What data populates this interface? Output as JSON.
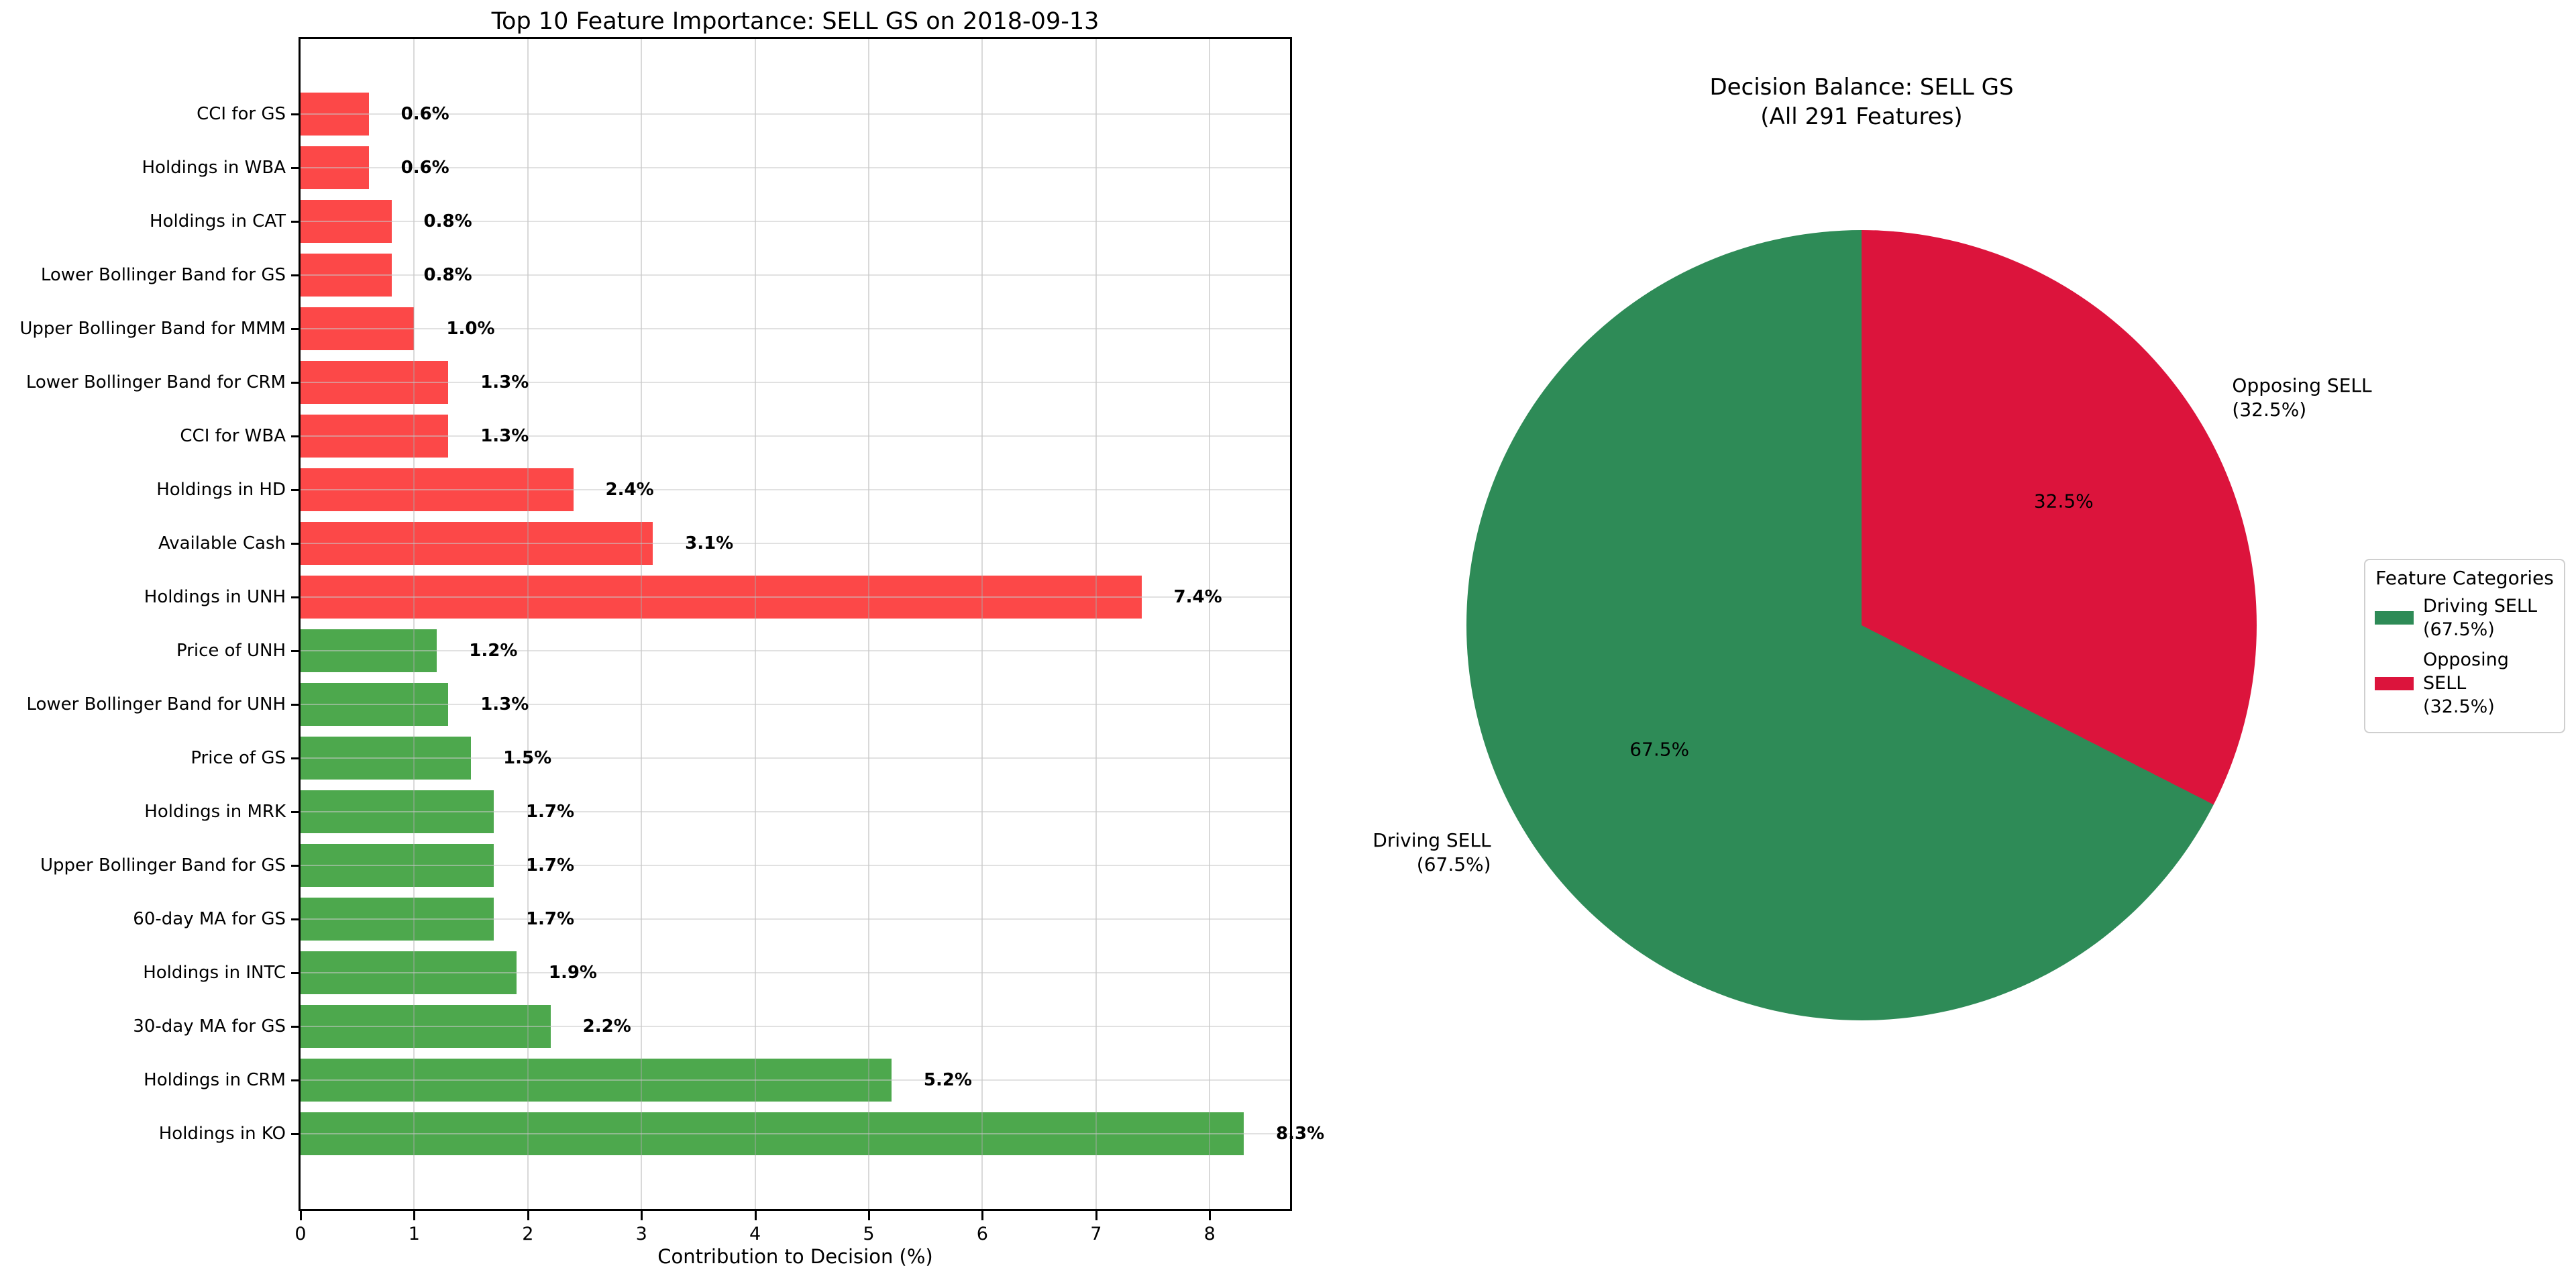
{
  "chart_data": [
    {
      "type": "bar",
      "orientation": "horizontal",
      "title": "Top 10 Feature Importance: SELL GS on 2018-09-13",
      "xlabel": "Contribution to Decision (%)",
      "x_ticks": [
        0,
        1,
        2,
        3,
        4,
        5,
        6,
        7,
        8
      ],
      "xlim": [
        0,
        8.72
      ],
      "grid": true,
      "category_colors": {
        "opposing": "#fc4848",
        "driving": "#4da84d"
      },
      "bars": [
        {
          "label": "CCI for GS",
          "value": 0.6,
          "display": "0.6%",
          "category": "opposing"
        },
        {
          "label": "Holdings in WBA",
          "value": 0.6,
          "display": "0.6%",
          "category": "opposing"
        },
        {
          "label": "Holdings in CAT",
          "value": 0.8,
          "display": "0.8%",
          "category": "opposing"
        },
        {
          "label": "Lower Bollinger Band for GS",
          "value": 0.8,
          "display": "0.8%",
          "category": "opposing"
        },
        {
          "label": "Upper Bollinger Band for MMM",
          "value": 1.0,
          "display": "1.0%",
          "category": "opposing"
        },
        {
          "label": "Lower Bollinger Band for CRM",
          "value": 1.3,
          "display": "1.3%",
          "category": "opposing"
        },
        {
          "label": "CCI for WBA",
          "value": 1.3,
          "display": "1.3%",
          "category": "opposing"
        },
        {
          "label": "Holdings in HD",
          "value": 2.4,
          "display": "2.4%",
          "category": "opposing"
        },
        {
          "label": "Available Cash",
          "value": 3.1,
          "display": "3.1%",
          "category": "opposing"
        },
        {
          "label": "Holdings in UNH",
          "value": 7.4,
          "display": "7.4%",
          "category": "opposing"
        },
        {
          "label": "Price of UNH",
          "value": 1.2,
          "display": "1.2%",
          "category": "driving"
        },
        {
          "label": "Lower Bollinger Band for UNH",
          "value": 1.3,
          "display": "1.3%",
          "category": "driving"
        },
        {
          "label": "Price of GS",
          "value": 1.5,
          "display": "1.5%",
          "category": "driving"
        },
        {
          "label": "Holdings in MRK",
          "value": 1.7,
          "display": "1.7%",
          "category": "driving"
        },
        {
          "label": "Upper Bollinger Band for GS",
          "value": 1.7,
          "display": "1.7%",
          "category": "driving"
        },
        {
          "label": "60-day MA for GS",
          "value": 1.7,
          "display": "1.7%",
          "category": "driving"
        },
        {
          "label": "Holdings in INTC",
          "value": 1.9,
          "display": "1.9%",
          "category": "driving"
        },
        {
          "label": "30-day MA for GS",
          "value": 2.2,
          "display": "2.2%",
          "category": "driving"
        },
        {
          "label": "Holdings in CRM",
          "value": 5.2,
          "display": "5.2%",
          "category": "driving"
        },
        {
          "label": "Holdings in KO",
          "value": 8.3,
          "display": "8.3%",
          "category": "driving"
        }
      ]
    },
    {
      "type": "pie",
      "title": "Decision Balance: SELL GS\n(All 291 Features)",
      "start_angle_deg": 90,
      "counterclockwise": true,
      "slices": [
        {
          "name": "Driving SELL",
          "pct": 67.5,
          "color": "#2e8b57",
          "inner_label": "67.5%",
          "outer_label": "Driving SELL\n(67.5%)"
        },
        {
          "name": "Opposing SELL",
          "pct": 32.5,
          "color": "#dc143c",
          "inner_label": "32.5%",
          "outer_label": "Opposing SELL\n(32.5%)"
        }
      ],
      "legend": {
        "title": "Feature Categories",
        "position": "center right",
        "entries": [
          {
            "label": "Driving SELL\n(67.5%)",
            "color": "#2e8b57"
          },
          {
            "label": "Opposing SELL\n(32.5%)",
            "color": "#dc143c"
          }
        ]
      }
    }
  ]
}
